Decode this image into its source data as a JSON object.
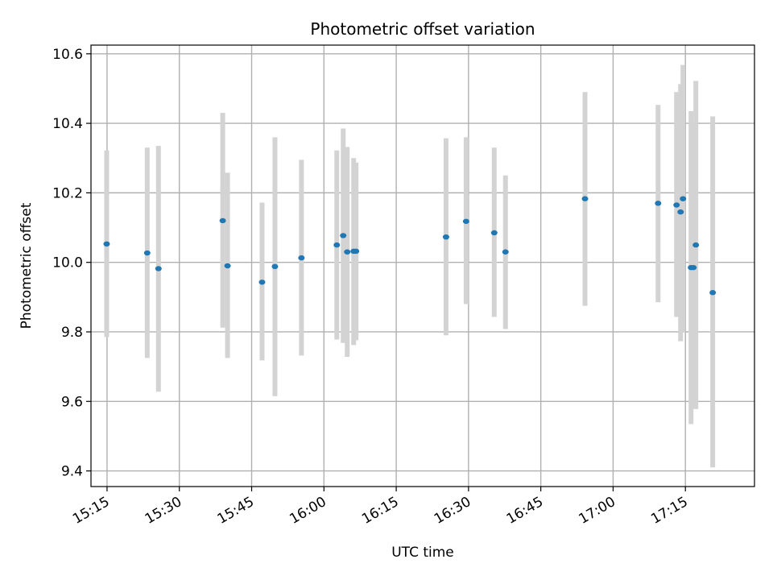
{
  "chart_data": {
    "type": "scatter",
    "title": "Photometric offset variation",
    "xlabel": "UTC time",
    "ylabel": "Photometric offset",
    "x_unit": "UTC time (HH:MM)",
    "xlim": [
      "15:11:40",
      "17:29:20"
    ],
    "ylim": [
      9.355,
      10.625
    ],
    "x_ticks": [
      "15:15",
      "15:30",
      "15:45",
      "16:00",
      "16:15",
      "16:30",
      "16:45",
      "17:00",
      "17:15"
    ],
    "y_ticks": [
      9.4,
      9.6,
      9.8,
      10.0,
      10.2,
      10.4,
      10.6
    ],
    "y_tick_labels": [
      "9.4",
      "9.6",
      "9.8",
      "10.0",
      "10.2",
      "10.4",
      "10.6"
    ],
    "grid": true,
    "colors": {
      "points": "#1f77b4",
      "errorbars": "#d3d3d3",
      "grid": "#b0b0b0"
    },
    "series": [
      {
        "points": [
          {
            "x": "15:14:55",
            "y": 10.053,
            "ylow": 9.785,
            "yhigh": 10.322
          },
          {
            "x": "15:23:20",
            "y": 10.027,
            "ylow": 9.725,
            "yhigh": 10.33
          },
          {
            "x": "15:25:40",
            "y": 9.982,
            "ylow": 9.628,
            "yhigh": 10.335
          },
          {
            "x": "15:39:00",
            "y": 10.12,
            "ylow": 9.812,
            "yhigh": 10.43
          },
          {
            "x": "15:40:00",
            "y": 9.99,
            "ylow": 9.725,
            "yhigh": 10.258
          },
          {
            "x": "15:47:10",
            "y": 9.943,
            "ylow": 9.718,
            "yhigh": 10.172
          },
          {
            "x": "15:49:50",
            "y": 9.988,
            "ylow": 9.615,
            "yhigh": 10.36
          },
          {
            "x": "15:55:20",
            "y": 10.013,
            "ylow": 9.732,
            "yhigh": 10.295
          },
          {
            "x": "16:02:40",
            "y": 10.05,
            "ylow": 9.778,
            "yhigh": 10.322
          },
          {
            "x": "16:04:00",
            "y": 10.077,
            "ylow": 9.768,
            "yhigh": 10.385
          },
          {
            "x": "16:04:50",
            "y": 10.03,
            "ylow": 9.728,
            "yhigh": 10.332
          },
          {
            "x": "16:06:10",
            "y": 10.032,
            "ylow": 9.762,
            "yhigh": 10.3
          },
          {
            "x": "16:06:40",
            "y": 10.032,
            "ylow": 9.776,
            "yhigh": 10.287
          },
          {
            "x": "16:25:20",
            "y": 10.073,
            "ylow": 9.79,
            "yhigh": 10.357
          },
          {
            "x": "16:29:30",
            "y": 10.118,
            "ylow": 9.88,
            "yhigh": 10.36
          },
          {
            "x": "16:35:20",
            "y": 10.085,
            "ylow": 9.843,
            "yhigh": 10.33
          },
          {
            "x": "16:37:40",
            "y": 10.03,
            "ylow": 9.808,
            "yhigh": 10.25
          },
          {
            "x": "16:54:10",
            "y": 10.183,
            "ylow": 9.875,
            "yhigh": 10.49
          },
          {
            "x": "17:09:20",
            "y": 10.17,
            "ylow": 9.885,
            "yhigh": 10.453
          },
          {
            "x": "17:13:10",
            "y": 10.165,
            "ylow": 9.843,
            "yhigh": 10.49
          },
          {
            "x": "17:14:00",
            "y": 10.145,
            "ylow": 9.773,
            "yhigh": 10.513
          },
          {
            "x": "17:14:30",
            "y": 10.183,
            "ylow": 9.798,
            "yhigh": 10.568
          },
          {
            "x": "17:16:10",
            "y": 9.985,
            "ylow": 9.535,
            "yhigh": 10.435
          },
          {
            "x": "17:16:40",
            "y": 9.985,
            "ylow": 9.58,
            "yhigh": 10.39
          },
          {
            "x": "17:17:10",
            "y": 10.05,
            "ylow": 9.578,
            "yhigh": 10.522
          },
          {
            "x": "17:20:40",
            "y": 9.913,
            "ylow": 9.41,
            "yhigh": 10.42
          }
        ]
      }
    ]
  }
}
